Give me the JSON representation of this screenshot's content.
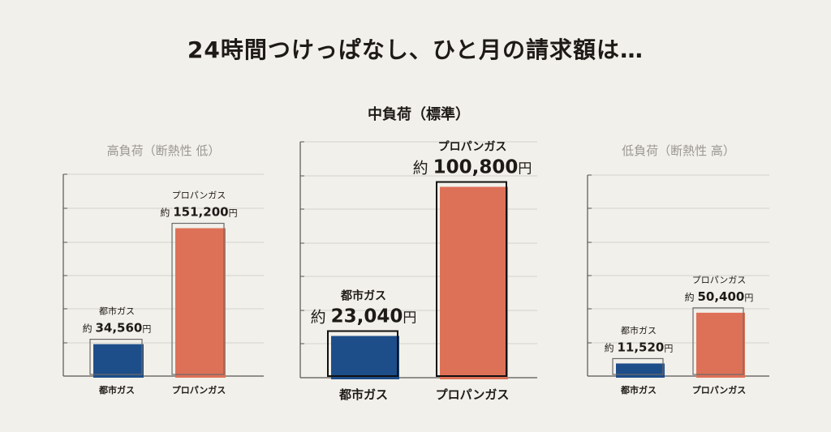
{
  "title": "24時間つけっぱなし、ひと月の請求額は…",
  "colors": {
    "city_gas": "#1e4e8a",
    "propane": "#dd7158",
    "axis": "#555555",
    "grid": "#d4d2cc",
    "title_main": "#1d1a17",
    "title_side": "#9a9792"
  },
  "chart_data": [
    {
      "type": "bar",
      "title": "高負荷（断熱性 低）",
      "categories": [
        "都市ガス",
        "プロパンガス"
      ],
      "values": [
        34560,
        151200
      ],
      "value_labels": [
        {
          "prefix": "約",
          "number": "34,560",
          "unit": "円"
        },
        {
          "prefix": "約",
          "number": "151,200",
          "unit": "円"
        }
      ],
      "ylim": [
        0,
        203000
      ],
      "grid": true,
      "legend": "none"
    },
    {
      "type": "bar",
      "title": "中負荷（標準）",
      "categories": [
        "都市ガス",
        "プロパンガス"
      ],
      "values": [
        23040,
        100800
      ],
      "value_labels": [
        {
          "prefix": "約",
          "number": "23,040",
          "unit": "円"
        },
        {
          "prefix": "約",
          "number": "100,800",
          "unit": "円"
        }
      ],
      "ylim": [
        0,
        123000
      ],
      "grid": true,
      "legend": "none"
    },
    {
      "type": "bar",
      "title": "低負荷（断熱性 高）",
      "categories": [
        "都市ガス",
        "プロパンガス"
      ],
      "values": [
        11520,
        50400
      ],
      "value_labels": [
        {
          "prefix": "約",
          "number": "11,520",
          "unit": "円"
        },
        {
          "prefix": "約",
          "number": "50,400",
          "unit": "円"
        }
      ],
      "ylim": [
        0,
        154000
      ],
      "grid": true,
      "legend": "none"
    }
  ]
}
